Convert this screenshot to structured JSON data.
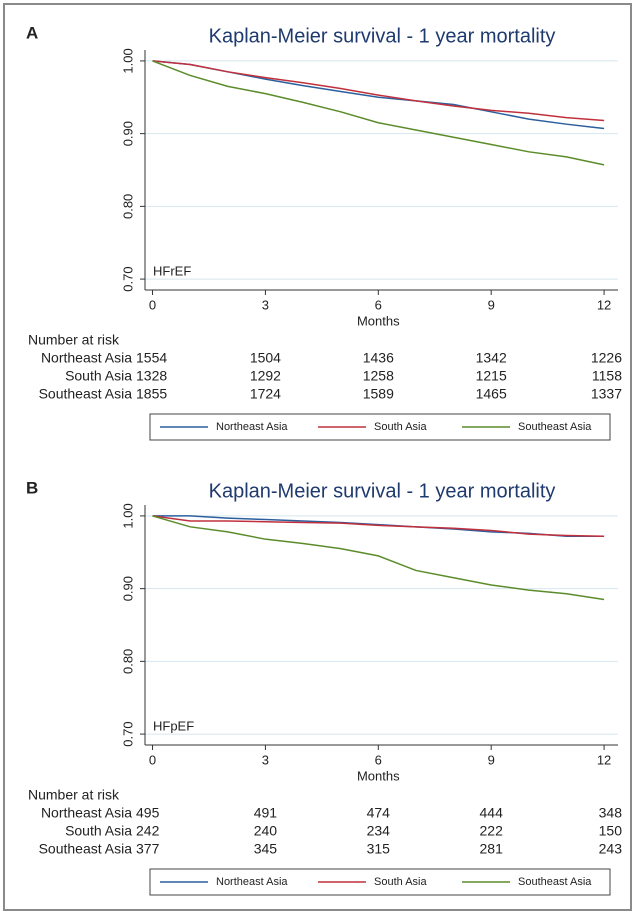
{
  "chart_data": [
    {
      "type": "line",
      "panel_label": "A",
      "title": "Kaplan-Meier survival - 1 year mortality",
      "annotation": "HFrEF",
      "xlabel": "Months",
      "x": [
        0,
        1,
        2,
        3,
        4,
        5,
        6,
        7,
        8,
        9,
        10,
        11,
        12
      ],
      "series": [
        {
          "name": "Northeast Asia",
          "color": "#2b5f9e",
          "values": [
            1.0,
            0.995,
            0.985,
            0.975,
            0.966,
            0.958,
            0.95,
            0.945,
            0.94,
            0.93,
            0.92,
            0.913,
            0.907
          ]
        },
        {
          "name": "South Asia",
          "color": "#c0303c",
          "values": [
            1.0,
            0.995,
            0.985,
            0.977,
            0.97,
            0.962,
            0.953,
            0.945,
            0.938,
            0.932,
            0.928,
            0.922,
            0.918
          ]
        },
        {
          "name": "Southeast Asia",
          "color": "#5b8c2a",
          "values": [
            1.0,
            0.98,
            0.965,
            0.955,
            0.943,
            0.93,
            0.915,
            0.905,
            0.895,
            0.885,
            0.875,
            0.868,
            0.857
          ]
        }
      ],
      "xlim": [
        -0.2,
        12.37
      ],
      "ylim": [
        0.685,
        1.015
      ],
      "xticks": [
        0,
        3,
        6,
        9,
        12
      ],
      "yticks": [
        {
          "value": 1.0,
          "label": "1.00"
        },
        {
          "value": 0.9,
          "label": "0.90"
        },
        {
          "value": 0.8,
          "label": "0.80"
        },
        {
          "value": 0.7,
          "label": "0.70"
        }
      ],
      "grid": true,
      "risk_table": {
        "title": "Number at risk",
        "rows": [
          {
            "name": "Northeast Asia",
            "values": [
              1554,
              1504,
              1436,
              1342,
              1226
            ]
          },
          {
            "name": "South Asia",
            "values": [
              1328,
              1292,
              1258,
              1215,
              1158
            ]
          },
          {
            "name": "Southeast Asia",
            "values": [
              1855,
              1724,
              1589,
              1465,
              1337
            ]
          }
        ]
      }
    },
    {
      "type": "line",
      "panel_label": "B",
      "title": "Kaplan-Meier survival - 1 year mortality",
      "annotation": "HFpEF",
      "xlabel": "Months",
      "x": [
        0,
        1,
        2,
        3,
        4,
        5,
        6,
        7,
        8,
        9,
        10,
        11,
        12
      ],
      "series": [
        {
          "name": "Northeast Asia",
          "color": "#2b5f9e",
          "values": [
            1.0,
            1.0,
            0.997,
            0.995,
            0.993,
            0.991,
            0.988,
            0.985,
            0.982,
            0.978,
            0.976,
            0.972,
            0.972
          ]
        },
        {
          "name": "South Asia",
          "color": "#c0303c",
          "values": [
            1.0,
            0.993,
            0.993,
            0.992,
            0.991,
            0.99,
            0.987,
            0.985,
            0.983,
            0.98,
            0.975,
            0.973,
            0.972
          ]
        },
        {
          "name": "Southeast Asia",
          "color": "#5b8c2a",
          "values": [
            1.0,
            0.985,
            0.978,
            0.968,
            0.962,
            0.955,
            0.945,
            0.925,
            0.915,
            0.905,
            0.898,
            0.893,
            0.885
          ]
        }
      ],
      "xlim": [
        -0.2,
        12.37
      ],
      "ylim": [
        0.685,
        1.015
      ],
      "xticks": [
        0,
        3,
        6,
        9,
        12
      ],
      "yticks": [
        {
          "value": 1.0,
          "label": "1.00"
        },
        {
          "value": 0.9,
          "label": "0.90"
        },
        {
          "value": 0.8,
          "label": "0.80"
        },
        {
          "value": 0.7,
          "label": "0.70"
        }
      ],
      "grid": true,
      "risk_table": {
        "title": "Number at risk",
        "rows": [
          {
            "name": "Northeast Asia",
            "values": [
              495,
              491,
              474,
              444,
              348
            ]
          },
          {
            "name": "South Asia",
            "values": [
              242,
              240,
              234,
              222,
              150
            ]
          },
          {
            "name": "Southeast Asia",
            "values": [
              377,
              345,
              315,
              281,
              243
            ]
          }
        ]
      }
    }
  ]
}
